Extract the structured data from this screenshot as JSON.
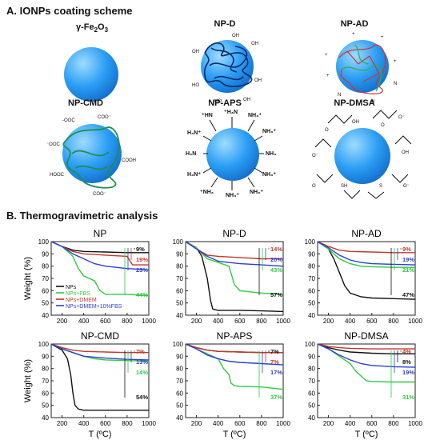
{
  "section_a": {
    "title": "A. IONPs coating scheme",
    "particles": [
      {
        "label": "γ-Fe",
        "sub": "2",
        "label2": "O",
        "sub2": "3",
        "coating": "none"
      },
      {
        "label": "NP-D",
        "coating": "dextran"
      },
      {
        "label": "NP-AD",
        "coating": "aminodextran"
      },
      {
        "label": "NP-CMD",
        "coating": "carboxymethyldextran"
      },
      {
        "label": "NP-APS",
        "coating": "aminopropylsilane"
      },
      {
        "label": "NP-DMSA",
        "coating": "dimercaptosuccinic-acid"
      }
    ]
  },
  "section_b": {
    "title": "B. Thermogravimetric analysis"
  },
  "colors": {
    "NPs": "#111111",
    "NPs+FBS": "#2ecc40",
    "NPs+DMEM": "#c0392b",
    "NPs+DMEM+10%FBS": "#2b3fd6"
  },
  "chart_data": [
    {
      "type": "line",
      "title": "NP",
      "xlabel": "",
      "ylabel": "Weight (%)",
      "xlim": [
        100,
        1000
      ],
      "ylim": [
        40,
        100
      ],
      "xticks": [
        200,
        400,
        600,
        800,
        1000
      ],
      "yticks": [
        40,
        50,
        60,
        70,
        80,
        90,
        100
      ],
      "series": [
        {
          "name": "NPs",
          "color": "#111111",
          "x": [
            100,
            200,
            300,
            400,
            600,
            800,
            1000
          ],
          "y": [
            100,
            96,
            93,
            92,
            91.5,
            91,
            91
          ]
        },
        {
          "name": "NPs+FBS",
          "color": "#2ecc40",
          "x": [
            100,
            200,
            300,
            350,
            400,
            500,
            550,
            600,
            800,
            1000
          ],
          "y": [
            100,
            96,
            88,
            78,
            72,
            68,
            60,
            57,
            57,
            56
          ]
        },
        {
          "name": "NPs+DMEM",
          "color": "#c0392b",
          "x": [
            100,
            200,
            300,
            400,
            600,
            800,
            850,
            900,
            1000
          ],
          "y": [
            100,
            96,
            92,
            90,
            89,
            88,
            81,
            81,
            81
          ]
        },
        {
          "name": "NPs+DMEM+10%FBS",
          "color": "#2b3fd6",
          "x": [
            100,
            200,
            300,
            400,
            500,
            600,
            800,
            1000
          ],
          "y": [
            100,
            96,
            90,
            86,
            82,
            80,
            78,
            77
          ]
        }
      ],
      "annotations": [
        {
          "text": "9%",
          "color": "#111111"
        },
        {
          "text": "19%",
          "color": "#c0392b"
        },
        {
          "text": "23%",
          "color": "#2b3fd6"
        },
        {
          "text": "44%",
          "color": "#2ecc40"
        }
      ],
      "legend": [
        "NPs",
        "NPs+FBS",
        "NPs+DMEM",
        "NPs+DMEM+10%FBS"
      ]
    },
    {
      "type": "line",
      "title": "NP-D",
      "xlabel": "",
      "ylabel": "",
      "xlim": [
        100,
        1000
      ],
      "ylim": [
        40,
        100
      ],
      "xticks": [
        200,
        400,
        600,
        800,
        1000
      ],
      "yticks": [
        40,
        50,
        60,
        70,
        80,
        90,
        100
      ],
      "series": [
        {
          "name": "NPs",
          "color": "#111111",
          "x": [
            100,
            200,
            250,
            300,
            330,
            350,
            400,
            600,
            800,
            1000
          ],
          "y": [
            100,
            95,
            88,
            70,
            52,
            45,
            44,
            44,
            43.5,
            43
          ]
        },
        {
          "name": "NPs+FBS",
          "color": "#2ecc40",
          "x": [
            100,
            200,
            300,
            400,
            500,
            550,
            600,
            800,
            1000
          ],
          "y": [
            100,
            95,
            86,
            83,
            80,
            65,
            60,
            58,
            57
          ]
        },
        {
          "name": "NPs+DMEM",
          "color": "#c0392b",
          "x": [
            100,
            200,
            300,
            400,
            600,
            800,
            1000
          ],
          "y": [
            100,
            94,
            89,
            88,
            87,
            86,
            86
          ]
        },
        {
          "name": "NPs+DMEM+10%FBS",
          "color": "#2b3fd6",
          "x": [
            100,
            200,
            300,
            400,
            500,
            600,
            800,
            1000
          ],
          "y": [
            100,
            94,
            88,
            84,
            83,
            82,
            81,
            80
          ]
        }
      ],
      "annotations": [
        {
          "text": "14%",
          "color": "#c0392b"
        },
        {
          "text": "20%",
          "color": "#2b3fd6"
        },
        {
          "text": "43%",
          "color": "#2ecc40"
        },
        {
          "text": "57%",
          "color": "#111111"
        }
      ]
    },
    {
      "type": "line",
      "title": "NP-AD",
      "xlabel": "",
      "ylabel": "",
      "xlim": [
        100,
        1000
      ],
      "ylim": [
        40,
        100
      ],
      "xticks": [
        200,
        400,
        600,
        800,
        1000
      ],
      "yticks": [
        40,
        50,
        60,
        70,
        80,
        90,
        100
      ],
      "series": [
        {
          "name": "NPs",
          "color": "#111111",
          "x": [
            100,
            200,
            250,
            300,
            350,
            400,
            500,
            600,
            800,
            1000
          ],
          "y": [
            100,
            94,
            86,
            75,
            64,
            58,
            55,
            54,
            53.5,
            53
          ]
        },
        {
          "name": "NPs+FBS",
          "color": "#2ecc40",
          "x": [
            100,
            200,
            300,
            400,
            500,
            600,
            800,
            1000
          ],
          "y": [
            100,
            94,
            86,
            82,
            80,
            79.5,
            79,
            79
          ]
        },
        {
          "name": "NPs+DMEM",
          "color": "#c0392b",
          "x": [
            100,
            200,
            300,
            400,
            600,
            800,
            1000
          ],
          "y": [
            100,
            96,
            93,
            92,
            91.5,
            91,
            91
          ]
        },
        {
          "name": "NPs+DMEM+10%FBS",
          "color": "#2b3fd6",
          "x": [
            100,
            200,
            300,
            400,
            500,
            600,
            800,
            1000
          ],
          "y": [
            100,
            95,
            89,
            85,
            83,
            82,
            81.5,
            81
          ]
        }
      ],
      "annotations": [
        {
          "text": "9%",
          "color": "#c0392b"
        },
        {
          "text": "19%",
          "color": "#2b3fd6"
        },
        {
          "text": "21%",
          "color": "#2ecc40"
        },
        {
          "text": "47%",
          "color": "#111111"
        }
      ]
    },
    {
      "type": "line",
      "title": "NP-CMD",
      "xlabel": "T (ºC)",
      "ylabel": "Weight (%)",
      "xlim": [
        100,
        1000
      ],
      "ylim": [
        40,
        100
      ],
      "xticks": [
        200,
        400,
        600,
        800,
        1000
      ],
      "yticks": [
        40,
        50,
        60,
        70,
        80,
        90,
        100
      ],
      "series": [
        {
          "name": "NPs",
          "color": "#111111",
          "x": [
            100,
            200,
            250,
            280,
            300,
            320,
            350,
            400,
            600,
            800,
            1000
          ],
          "y": [
            100,
            95,
            88,
            75,
            60,
            50,
            47,
            46,
            46,
            46,
            46
          ]
        },
        {
          "name": "NPs+FBS",
          "color": "#2ecc40",
          "x": [
            100,
            200,
            300,
            400,
            500,
            600,
            800,
            1000
          ],
          "y": [
            100,
            96,
            93,
            90,
            88,
            87,
            86.5,
            86
          ]
        },
        {
          "name": "NPs+DMEM",
          "color": "#c0392b",
          "x": [
            100,
            200,
            300,
            400,
            600,
            800,
            1000
          ],
          "y": [
            100,
            97,
            95,
            94,
            93.5,
            93,
            93
          ]
        },
        {
          "name": "NPs+DMEM+10%FBS",
          "color": "#2b3fd6",
          "x": [
            100,
            200,
            300,
            400,
            600,
            800,
            1000
          ],
          "y": [
            100,
            96,
            93,
            90,
            88.5,
            87.5,
            87
          ]
        }
      ],
      "annotations": [
        {
          "text": "7%",
          "color": "#c0392b"
        },
        {
          "text": "13%",
          "color": "#2b3fd6"
        },
        {
          "text": "14%",
          "color": "#2ecc40"
        },
        {
          "text": "54%",
          "color": "#111111"
        }
      ]
    },
    {
      "type": "line",
      "title": "NP-APS",
      "xlabel": "T (ºC)",
      "ylabel": "",
      "xlim": [
        100,
        1000
      ],
      "ylim": [
        40,
        100
      ],
      "xticks": [
        200,
        400,
        600,
        800,
        1000
      ],
      "yticks": [
        40,
        50,
        60,
        70,
        80,
        90,
        100
      ],
      "series": [
        {
          "name": "NPs",
          "color": "#111111",
          "x": [
            100,
            200,
            300,
            400,
            600,
            800,
            1000
          ],
          "y": [
            100,
            97,
            95,
            94,
            93.5,
            93,
            93
          ]
        },
        {
          "name": "NPs+FBS",
          "color": "#2ecc40",
          "x": [
            100,
            200,
            300,
            400,
            450,
            500,
            520,
            550,
            600,
            800,
            1000
          ],
          "y": [
            100,
            96,
            92,
            88,
            80,
            75,
            68,
            66,
            65.5,
            65,
            63
          ]
        },
        {
          "name": "NPs+DMEM",
          "color": "#c0392b",
          "x": [
            100,
            200,
            300,
            400,
            600,
            800,
            1000
          ],
          "y": [
            100,
            97,
            95,
            94,
            93.5,
            93,
            93
          ]
        },
        {
          "name": "NPs+DMEM+10%FBS",
          "color": "#2b3fd6",
          "x": [
            100,
            200,
            300,
            400,
            500,
            600,
            800,
            1000
          ],
          "y": [
            100,
            96,
            91,
            88,
            86,
            85,
            84,
            83
          ]
        }
      ],
      "annotations": [
        {
          "text": "7%",
          "color": "#111111"
        },
        {
          "text": "7%",
          "color": "#c0392b"
        },
        {
          "text": "17%",
          "color": "#2b3fd6"
        },
        {
          "text": "37%",
          "color": "#2ecc40"
        }
      ]
    },
    {
      "type": "line",
      "title": "NP-DMSA",
      "xlabel": "T (ºC)",
      "ylabel": "",
      "xlim": [
        100,
        1000
      ],
      "ylim": [
        40,
        100
      ],
      "xticks": [
        200,
        400,
        600,
        800,
        1000
      ],
      "yticks": [
        40,
        50,
        60,
        70,
        80,
        90,
        100
      ],
      "series": [
        {
          "name": "NPs",
          "color": "#111111",
          "x": [
            100,
            200,
            300,
            400,
            600,
            800,
            1000
          ],
          "y": [
            100,
            97,
            95,
            93.5,
            92.5,
            92,
            92
          ]
        },
        {
          "name": "NPs+FBS",
          "color": "#2ecc40",
          "x": [
            100,
            200,
            300,
            400,
            450,
            500,
            550,
            600,
            800,
            1000
          ],
          "y": [
            100,
            96,
            90,
            84,
            78,
            74,
            70,
            69.5,
            69,
            69
          ]
        },
        {
          "name": "NPs+DMEM",
          "color": "#c0392b",
          "x": [
            100,
            200,
            300,
            400,
            600,
            800,
            1000
          ],
          "y": [
            100,
            98,
            97,
            96.5,
            96,
            96,
            96
          ]
        },
        {
          "name": "NPs+DMEM+10%FBS",
          "color": "#2b3fd6",
          "x": [
            100,
            200,
            300,
            400,
            500,
            600,
            800,
            1000
          ],
          "y": [
            100,
            96,
            91,
            87,
            84,
            82.5,
            81.5,
            81
          ]
        }
      ],
      "annotations": [
        {
          "text": "4%",
          "color": "#c0392b"
        },
        {
          "text": "8%",
          "color": "#111111"
        },
        {
          "text": "19%",
          "color": "#2b3fd6"
        },
        {
          "text": "31%",
          "color": "#2ecc40"
        }
      ]
    }
  ]
}
